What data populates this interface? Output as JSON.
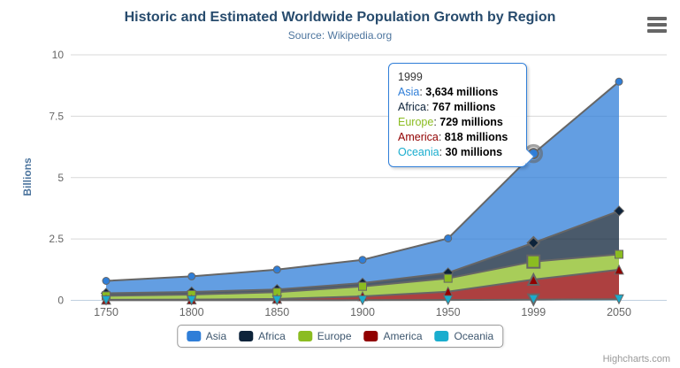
{
  "title": "Historic and Estimated Worldwide Population Growth by Region",
  "subtitle": "Source: Wikipedia.org",
  "credits": "Highcharts.com",
  "y_axis": {
    "title": "Billions",
    "ticks": [
      0,
      2.5,
      5,
      7.5,
      10
    ],
    "max": 10
  },
  "x_axis": {
    "categories": [
      "1750",
      "1800",
      "1850",
      "1900",
      "1950",
      "1999",
      "2050"
    ]
  },
  "chart_data": {
    "type": "area",
    "stacking": "normal",
    "units": "millions",
    "categories": [
      "1750",
      "1800",
      "1850",
      "1900",
      "1950",
      "1999",
      "2050"
    ],
    "series": [
      {
        "name": "Asia",
        "color": "#2f7ed8",
        "marker": "circle",
        "values": [
          502,
          635,
          809,
          947,
          1402,
          3634,
          5268
        ]
      },
      {
        "name": "Africa",
        "color": "#0d233a",
        "marker": "diamond",
        "values": [
          106,
          107,
          111,
          133,
          221,
          767,
          1766
        ]
      },
      {
        "name": "Europe",
        "color": "#8bbc21",
        "marker": "square",
        "values": [
          163,
          203,
          276,
          408,
          547,
          729,
          628
        ]
      },
      {
        "name": "America",
        "color": "#910000",
        "marker": "triangle",
        "values": [
          18,
          31,
          54,
          156,
          339,
          818,
          1201
        ]
      },
      {
        "name": "Oceania",
        "color": "#1aadce",
        "marker": "triangle-down",
        "values": [
          2,
          2,
          2,
          6,
          13,
          30,
          46
        ]
      }
    ],
    "title": "Historic and Estimated Worldwide Population Growth by Region",
    "xlabel": "",
    "ylabel": "Billions",
    "ylim": [
      0,
      10
    ],
    "grid": true,
    "legend_position": "bottom",
    "hover_index": 5,
    "fill_opacity": 0.75,
    "line_color": "#666666"
  },
  "tooltip": {
    "header": "1999",
    "border_color": "#2f7ed8",
    "rows": [
      {
        "name": "Asia",
        "value": "3,634 millions",
        "color": "#2f7ed8"
      },
      {
        "name": "Africa",
        "value": "767 millions",
        "color": "#0d233a"
      },
      {
        "name": "Europe",
        "value": "729 millions",
        "color": "#8bbc21"
      },
      {
        "name": "America",
        "value": "818 millions",
        "color": "#910000"
      },
      {
        "name": "Oceania",
        "value": "30 millions",
        "color": "#1aadce"
      }
    ]
  },
  "colors": {
    "title": "#274b6d",
    "subtitle": "#4d759e",
    "axis_label": "#666666",
    "gridline": "#d8d8d8",
    "axis_line": "#c0d0e0",
    "series_outline": "#666666",
    "legend_text": "#3e576f",
    "credits": "#999999"
  }
}
